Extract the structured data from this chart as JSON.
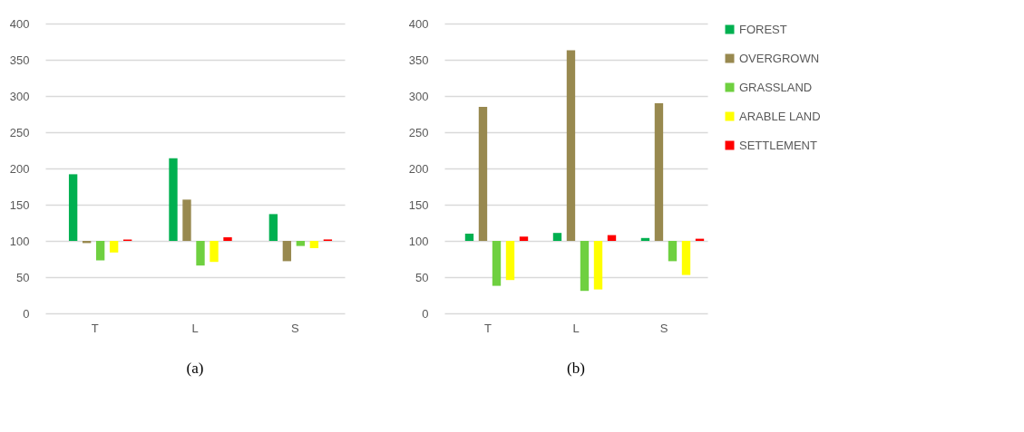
{
  "chart_data": [
    {
      "type": "bar",
      "title": "(a)",
      "categories": [
        "T",
        "L",
        "S"
      ],
      "ylim": [
        0,
        400
      ],
      "yticks": [
        0,
        50,
        100,
        150,
        200,
        250,
        300,
        350,
        400
      ],
      "grid": "y",
      "legend": false,
      "series": [
        {
          "color": "#00b050",
          "base": [
            100,
            100,
            100
          ],
          "values": [
            92,
            114,
            37
          ]
        },
        {
          "color": "#98894f",
          "base": [
            100,
            100,
            100
          ],
          "values": [
            -3,
            57,
            -28
          ]
        },
        {
          "color": "#6fd040",
          "base": [
            100,
            100,
            100
          ],
          "values": [
            -27,
            -34,
            -7
          ]
        },
        {
          "color": "#ffff00",
          "base": [
            100,
            100,
            100
          ],
          "values": [
            -16,
            -29,
            -10
          ]
        },
        {
          "color": "#ff0000",
          "base": [
            100,
            100,
            100
          ],
          "values": [
            2,
            5,
            2
          ]
        }
      ]
    },
    {
      "type": "bar",
      "title": "(b)",
      "categories": [
        "T",
        "L",
        "S"
      ],
      "ylim": [
        0,
        400
      ],
      "yticks": [
        0,
        50,
        100,
        150,
        200,
        250,
        300,
        350,
        400
      ],
      "grid": "y",
      "legend": "right",
      "series": [
        {
          "name": "FOREST",
          "color": "#00b050",
          "base": [
            100,
            100,
            100
          ],
          "values": [
            10,
            11,
            4
          ]
        },
        {
          "name": "OVERGROWN",
          "color": "#98894f",
          "base": [
            100,
            100,
            100
          ],
          "values": [
            185,
            263,
            190
          ]
        },
        {
          "name": "GRASSLAND",
          "color": "#6fd040",
          "base": [
            100,
            100,
            100
          ],
          "values": [
            -62,
            -69,
            -28
          ]
        },
        {
          "name": "ARABLE LAND",
          "color": "#ffff00",
          "base": [
            100,
            100,
            100
          ],
          "values": [
            -54,
            -67,
            -47
          ]
        },
        {
          "name": "SETTLEMENT",
          "color": "#ff0000",
          "base": [
            100,
            100,
            100
          ],
          "values": [
            6,
            8,
            3
          ]
        }
      ]
    }
  ]
}
